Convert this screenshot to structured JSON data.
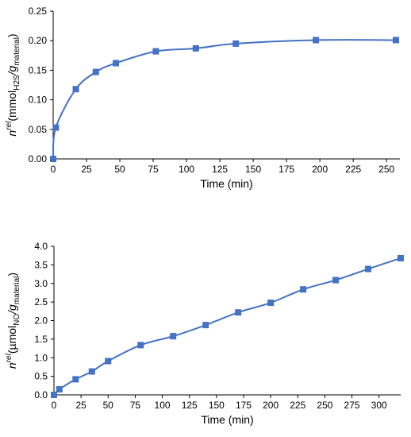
{
  "chart_data": [
    {
      "type": "line",
      "xlabel": "Time (min)",
      "ylabel": {
        "parts": [
          "n",
          "rel",
          "(mmol",
          "H2S",
          "/g",
          "material",
          ")"
        ]
      },
      "xlim": [
        0,
        260
      ],
      "ylim": [
        0,
        0.25
      ],
      "x_ticks": [
        "0",
        "25",
        "50",
        "75",
        "100",
        "125",
        "150",
        "175",
        "200",
        "225",
        "250"
      ],
      "y_ticks": [
        "0.00",
        "0.05",
        "0.10",
        "0.15",
        "0.20",
        "0.25"
      ],
      "grid": false,
      "marker": "square",
      "color": "#4472C4",
      "series": [
        {
          "x": [
            0,
            2,
            17,
            32,
            47,
            77,
            107,
            137,
            197,
            257
          ],
          "y": [
            0.0,
            0.053,
            0.118,
            0.147,
            0.162,
            0.182,
            0.187,
            0.195,
            0.201,
            0.201
          ]
        }
      ]
    },
    {
      "type": "line",
      "xlabel": "Time (min)",
      "ylabel": {
        "parts": [
          "n",
          "rel",
          "(µmol",
          "NO",
          "/g",
          "material",
          ")"
        ]
      },
      "xlim": [
        0,
        320
      ],
      "ylim": [
        0,
        4.0
      ],
      "x_ticks": [
        "0",
        "25",
        "50",
        "75",
        "100",
        "125",
        "150",
        "175",
        "200",
        "225",
        "250",
        "275",
        "300"
      ],
      "y_ticks": [
        "0.0",
        "0.5",
        "1.0",
        "1.5",
        "2.0",
        "2.5",
        "3.0",
        "3.5",
        "4.0"
      ],
      "grid": false,
      "marker": "square",
      "color": "#4472C4",
      "series": [
        {
          "x": [
            0,
            5,
            20,
            35,
            50,
            80,
            110,
            140,
            170,
            200,
            230,
            260,
            290,
            320
          ],
          "y": [
            0.0,
            0.15,
            0.42,
            0.63,
            0.91,
            1.34,
            1.58,
            1.88,
            2.22,
            2.48,
            2.84,
            3.09,
            3.39,
            3.68
          ]
        }
      ]
    }
  ]
}
